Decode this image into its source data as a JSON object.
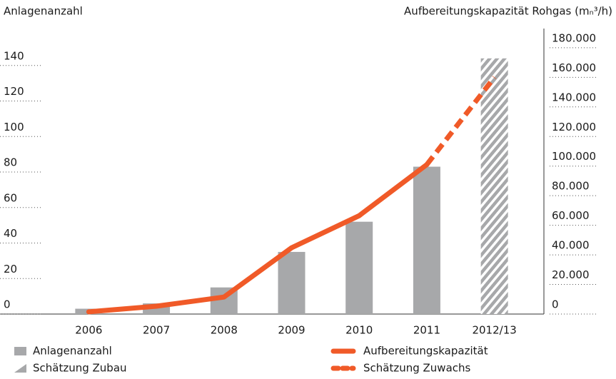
{
  "chart_data": {
    "type": "bar-line",
    "y_label": "Anlagenanzahl",
    "y2_label": "Aufbereitungskapazität Rohgas (mₙ³/h)",
    "categories": [
      "2006",
      "2007",
      "2008",
      "2009",
      "2010",
      "2011",
      "2012/13"
    ],
    "series": [
      {
        "name": "Anlagenanzahl",
        "kind": "bar",
        "color": "#a7a8aa",
        "values": [
          3,
          6,
          15,
          35,
          52,
          83,
          null
        ]
      },
      {
        "name": "Schätzung Zubau",
        "kind": "bar",
        "hatch": true,
        "color": "#a7a8aa",
        "values": [
          null,
          null,
          null,
          null,
          null,
          null,
          144
        ]
      },
      {
        "name": "Aufbereitungskapazität",
        "kind": "line",
        "axis": "y2",
        "color": "#f05a28",
        "values": [
          1500,
          5300,
          11500,
          44800,
          66500,
          101000,
          null
        ]
      },
      {
        "name": "Schätzung Zuwachs",
        "kind": "line",
        "dashed": true,
        "axis": "y2",
        "color": "#f05a28",
        "values": [
          null,
          null,
          null,
          null,
          null,
          101000,
          160000
        ]
      }
    ],
    "ylim": [
      0,
      160
    ],
    "yticks": [
      0,
      20,
      40,
      60,
      80,
      100,
      120,
      140
    ],
    "y2lim": [
      0,
      192000
    ],
    "y2ticks": [
      0,
      {
        "value": 20000,
        "label": "20.000"
      },
      {
        "value": 40000,
        "label": "40.000"
      },
      {
        "value": 60000,
        "label": "60.000"
      },
      {
        "value": 80000,
        "label": "80.000"
      },
      {
        "value": 100000,
        "label": "100.000"
      },
      {
        "value": 120000,
        "label": "120.000"
      },
      {
        "value": 140000,
        "label": "140.000"
      },
      {
        "value": 160000,
        "label": "160.000"
      },
      {
        "value": 180000,
        "label": "180.000"
      }
    ]
  }
}
